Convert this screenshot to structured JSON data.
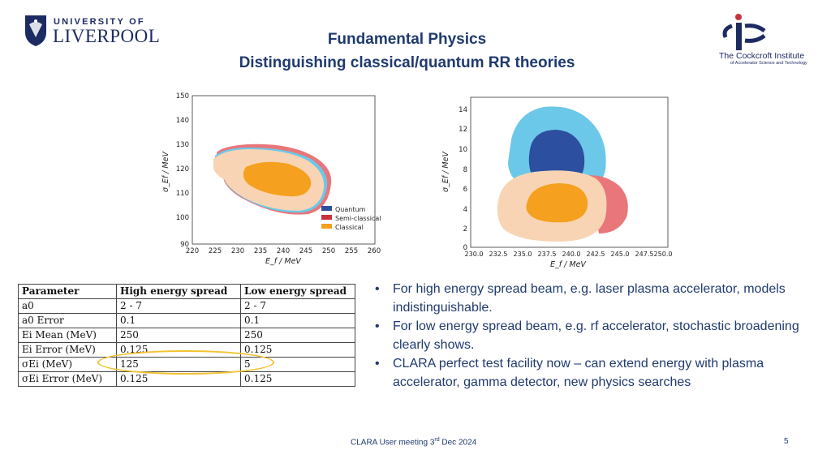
{
  "header": {
    "university_line1": "UNIVERSITY OF",
    "university_line2": "LIVERPOOL",
    "title_line1": "Fundamental Physics",
    "title_line2": "Distinguishing classical/quantum RR theories",
    "cockcroft_line1": "The Cockcroft Institute",
    "cockcroft_line2": "of Accelerator Science and Technology"
  },
  "chart_data": [
    {
      "type": "contour",
      "xlabel": "E_f / MeV",
      "ylabel": "σ_Ef / MeV",
      "xticks": [
        "220",
        "225",
        "230",
        "235",
        "240",
        "245",
        "250",
        "255",
        "260"
      ],
      "yticks": [
        "90",
        "100",
        "110",
        "120",
        "130",
        "140",
        "150"
      ],
      "xlim": [
        220,
        260
      ],
      "ylim": [
        90,
        150
      ],
      "legend": [
        "Quantum",
        "Semi-classical",
        "Classical"
      ],
      "legend_position": "lower-right"
    },
    {
      "type": "contour",
      "xlabel": "E_f / MeV",
      "ylabel": "σ_Ef / MeV",
      "xticks": [
        "230.0",
        "232.5",
        "235.0",
        "237.5",
        "240.0",
        "242.5",
        "245.0",
        "247.5",
        "250.0"
      ],
      "yticks": [
        "0",
        "2",
        "4",
        "6",
        "8",
        "10",
        "12",
        "14"
      ],
      "xlim": [
        230,
        250
      ],
      "ylim": [
        0,
        15
      ]
    }
  ],
  "colors": {
    "quantum_outer": "#6cc8e8",
    "quantum_inner": "#2c4fa0",
    "semi_outer": "#e8767a",
    "semi_inner": "#c8323c",
    "classical_outer": "#f8d4b4",
    "classical_inner": "#f5a01e",
    "title": "#1f3a6e",
    "highlight": "#f2c22e"
  },
  "table": {
    "headers": [
      "Parameter",
      "High energy spread",
      "Low energy spread"
    ],
    "rows": [
      [
        "a0",
        "2 - 7",
        "2 - 7"
      ],
      [
        "a0 Error",
        "0.1",
        "0.1"
      ],
      [
        "Ei Mean (MeV)",
        "250",
        "250"
      ],
      [
        "Ei Error (MeV)",
        "0.125",
        "0.125"
      ],
      [
        "σEi (MeV)",
        "125",
        "5"
      ],
      [
        "σEi Error (MeV)",
        "0.125",
        "0.125"
      ]
    ]
  },
  "bullets": [
    "For high energy spread beam, e.g. laser plasma accelerator, models indistinguishable.",
    "For low energy spread beam, e.g. rf accelerator, stochastic broadening clearly shows.",
    "CLARA perfect test facility now – can extend energy with plasma accelerator, gamma detector, new physics searches"
  ],
  "footer": {
    "text": "CLARA User meeting 3",
    "sup": "rd",
    "text_end": " Dec 2024",
    "page": "5"
  }
}
